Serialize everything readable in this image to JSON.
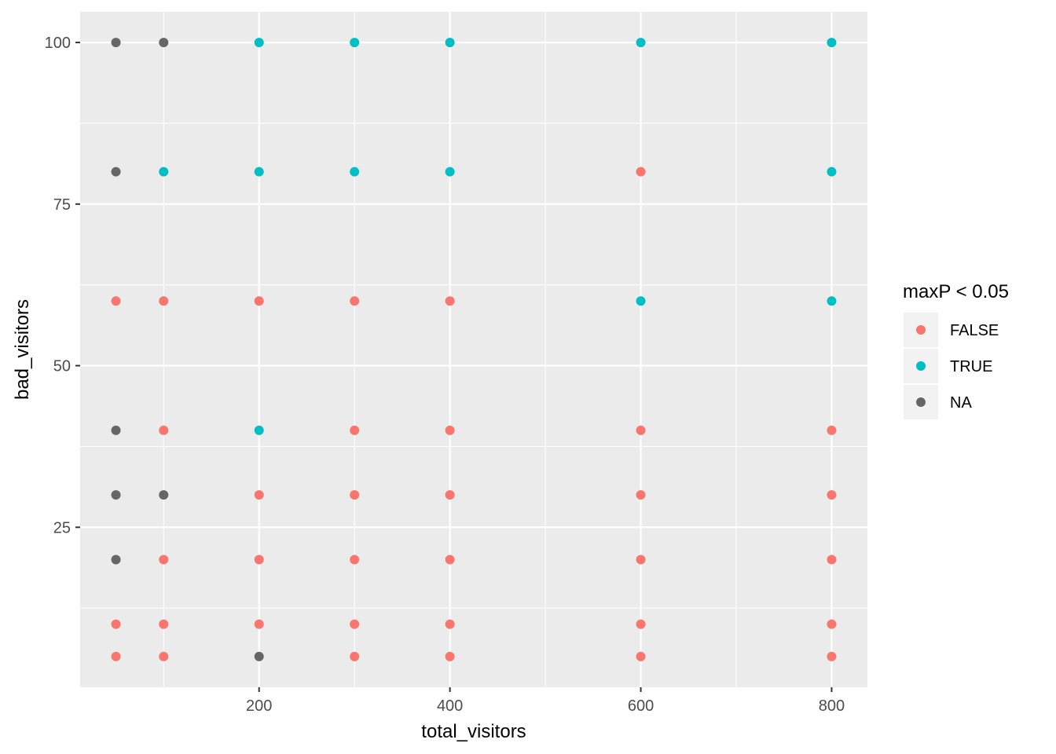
{
  "chart_data": {
    "type": "scatter",
    "title": "",
    "xlabel": "total_visitors",
    "ylabel": "bad_visitors",
    "xlim": [
      12.5,
      837.5
    ],
    "ylim": [
      0.25,
      104.75
    ],
    "x_ticks": [
      200,
      400,
      600,
      800
    ],
    "x_tick_labels": [
      "200",
      "400",
      "600",
      "800"
    ],
    "x_minor_ticks": [
      100,
      300,
      500,
      700
    ],
    "y_ticks": [
      25,
      50,
      75,
      100
    ],
    "y_tick_labels": [
      "25",
      "50",
      "75",
      "100"
    ],
    "y_minor_ticks": [
      12.5,
      37.5,
      62.5,
      87.5
    ],
    "grid": true,
    "legend": {
      "title": "maxP < 0.05",
      "position": "right",
      "entries": [
        {
          "key": "FALSE",
          "label": "FALSE",
          "color": "#F8766D"
        },
        {
          "key": "TRUE",
          "label": "TRUE",
          "color": "#00BFC4"
        },
        {
          "key": "NA",
          "label": "NA",
          "color": "#666666"
        }
      ]
    },
    "colors": {
      "FALSE": "#F8766D",
      "TRUE": "#00BFC4",
      "NA": "#666666"
    },
    "points": [
      {
        "x": 50,
        "y": 100,
        "group": "NA"
      },
      {
        "x": 50,
        "y": 80,
        "group": "NA"
      },
      {
        "x": 50,
        "y": 60,
        "group": "FALSE"
      },
      {
        "x": 50,
        "y": 40,
        "group": "NA"
      },
      {
        "x": 50,
        "y": 30,
        "group": "NA"
      },
      {
        "x": 50,
        "y": 20,
        "group": "NA"
      },
      {
        "x": 50,
        "y": 10,
        "group": "FALSE"
      },
      {
        "x": 50,
        "y": 5,
        "group": "FALSE"
      },
      {
        "x": 100,
        "y": 100,
        "group": "NA"
      },
      {
        "x": 100,
        "y": 80,
        "group": "TRUE"
      },
      {
        "x": 100,
        "y": 60,
        "group": "FALSE"
      },
      {
        "x": 100,
        "y": 40,
        "group": "FALSE"
      },
      {
        "x": 100,
        "y": 30,
        "group": "NA"
      },
      {
        "x": 100,
        "y": 20,
        "group": "FALSE"
      },
      {
        "x": 100,
        "y": 10,
        "group": "FALSE"
      },
      {
        "x": 100,
        "y": 5,
        "group": "FALSE"
      },
      {
        "x": 200,
        "y": 100,
        "group": "TRUE"
      },
      {
        "x": 200,
        "y": 80,
        "group": "TRUE"
      },
      {
        "x": 200,
        "y": 60,
        "group": "FALSE"
      },
      {
        "x": 200,
        "y": 40,
        "group": "TRUE"
      },
      {
        "x": 200,
        "y": 30,
        "group": "FALSE"
      },
      {
        "x": 200,
        "y": 20,
        "group": "FALSE"
      },
      {
        "x": 200,
        "y": 10,
        "group": "FALSE"
      },
      {
        "x": 200,
        "y": 5,
        "group": "NA"
      },
      {
        "x": 300,
        "y": 100,
        "group": "TRUE"
      },
      {
        "x": 300,
        "y": 80,
        "group": "TRUE"
      },
      {
        "x": 300,
        "y": 60,
        "group": "FALSE"
      },
      {
        "x": 300,
        "y": 40,
        "group": "FALSE"
      },
      {
        "x": 300,
        "y": 30,
        "group": "FALSE"
      },
      {
        "x": 300,
        "y": 20,
        "group": "FALSE"
      },
      {
        "x": 300,
        "y": 10,
        "group": "FALSE"
      },
      {
        "x": 300,
        "y": 5,
        "group": "FALSE"
      },
      {
        "x": 400,
        "y": 100,
        "group": "TRUE"
      },
      {
        "x": 400,
        "y": 80,
        "group": "TRUE"
      },
      {
        "x": 400,
        "y": 60,
        "group": "FALSE"
      },
      {
        "x": 400,
        "y": 40,
        "group": "FALSE"
      },
      {
        "x": 400,
        "y": 30,
        "group": "FALSE"
      },
      {
        "x": 400,
        "y": 20,
        "group": "FALSE"
      },
      {
        "x": 400,
        "y": 10,
        "group": "FALSE"
      },
      {
        "x": 400,
        "y": 5,
        "group": "FALSE"
      },
      {
        "x": 600,
        "y": 100,
        "group": "TRUE"
      },
      {
        "x": 600,
        "y": 80,
        "group": "FALSE"
      },
      {
        "x": 600,
        "y": 60,
        "group": "TRUE"
      },
      {
        "x": 600,
        "y": 40,
        "group": "FALSE"
      },
      {
        "x": 600,
        "y": 30,
        "group": "FALSE"
      },
      {
        "x": 600,
        "y": 20,
        "group": "FALSE"
      },
      {
        "x": 600,
        "y": 10,
        "group": "FALSE"
      },
      {
        "x": 600,
        "y": 5,
        "group": "FALSE"
      },
      {
        "x": 800,
        "y": 100,
        "group": "TRUE"
      },
      {
        "x": 800,
        "y": 80,
        "group": "TRUE"
      },
      {
        "x": 800,
        "y": 60,
        "group": "TRUE"
      },
      {
        "x": 800,
        "y": 40,
        "group": "FALSE"
      },
      {
        "x": 800,
        "y": 30,
        "group": "FALSE"
      },
      {
        "x": 800,
        "y": 20,
        "group": "FALSE"
      },
      {
        "x": 800,
        "y": 10,
        "group": "FALSE"
      },
      {
        "x": 800,
        "y": 5,
        "group": "FALSE"
      }
    ]
  }
}
